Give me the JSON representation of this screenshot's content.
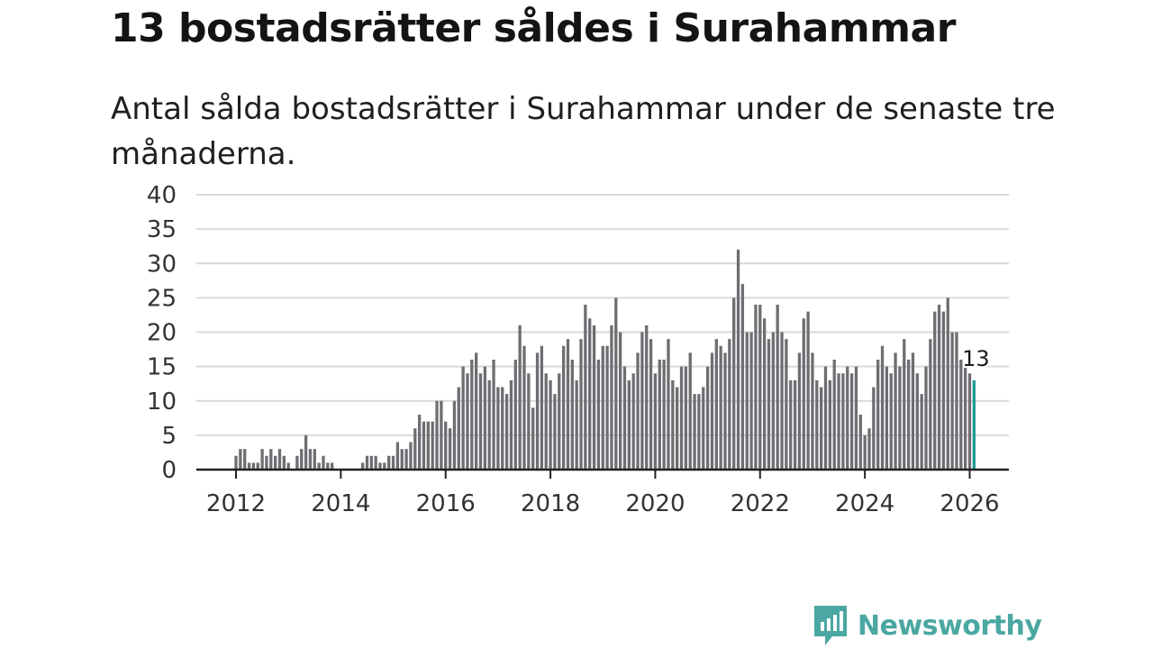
{
  "title": "13 bostadsrätter såldes i Surahammar",
  "subtitle": "Antal sålda bostadsrätter i Surahammar under de senaste tre månaderna.",
  "brand": {
    "name": "Newsworthy",
    "color": "#4aa7a1"
  },
  "chart_data": {
    "type": "bar",
    "title": "13 bostadsrätter såldes i Surahammar",
    "xlabel": "",
    "ylabel": "",
    "ylim": [
      0,
      40
    ],
    "yticks": [
      0,
      5,
      10,
      15,
      20,
      25,
      30,
      35,
      40
    ],
    "xticks": [
      2012,
      2014,
      2016,
      2018,
      2020,
      2022,
      2024,
      2026
    ],
    "x_start": "2012-01",
    "x_step": "month",
    "grid": true,
    "bar_color": "#6e6d72",
    "highlight_color": "#1f9b94",
    "last_label": "13",
    "values": [
      2,
      3,
      3,
      1,
      1,
      1,
      3,
      2,
      3,
      2,
      3,
      2,
      1,
      0,
      2,
      3,
      5,
      3,
      3,
      1,
      2,
      1,
      1,
      0,
      0,
      0,
      0,
      0,
      0,
      1,
      2,
      2,
      2,
      1,
      1,
      2,
      2,
      4,
      3,
      3,
      4,
      6,
      8,
      7,
      7,
      7,
      10,
      10,
      7,
      6,
      10,
      12,
      15,
      14,
      16,
      17,
      14,
      15,
      13,
      16,
      12,
      12,
      11,
      13,
      16,
      21,
      18,
      14,
      9,
      17,
      18,
      14,
      13,
      11,
      14,
      18,
      19,
      16,
      13,
      19,
      24,
      22,
      21,
      16,
      18,
      18,
      21,
      25,
      20,
      15,
      13,
      14,
      17,
      20,
      21,
      19,
      14,
      16,
      16,
      19,
      13,
      12,
      15,
      15,
      17,
      11,
      11,
      12,
      15,
      17,
      19,
      18,
      17,
      19,
      25,
      32,
      27,
      20,
      20,
      24,
      24,
      22,
      19,
      20,
      24,
      20,
      19,
      13,
      13,
      17,
      22,
      23,
      17,
      13,
      12,
      15,
      13,
      16,
      14,
      14,
      15,
      14,
      15,
      8,
      5,
      6,
      12,
      16,
      18,
      15,
      14,
      17,
      15,
      19,
      16,
      17,
      14,
      11,
      15,
      19,
      23,
      24,
      23,
      25,
      20,
      20,
      16,
      15,
      14,
      13
    ]
  }
}
